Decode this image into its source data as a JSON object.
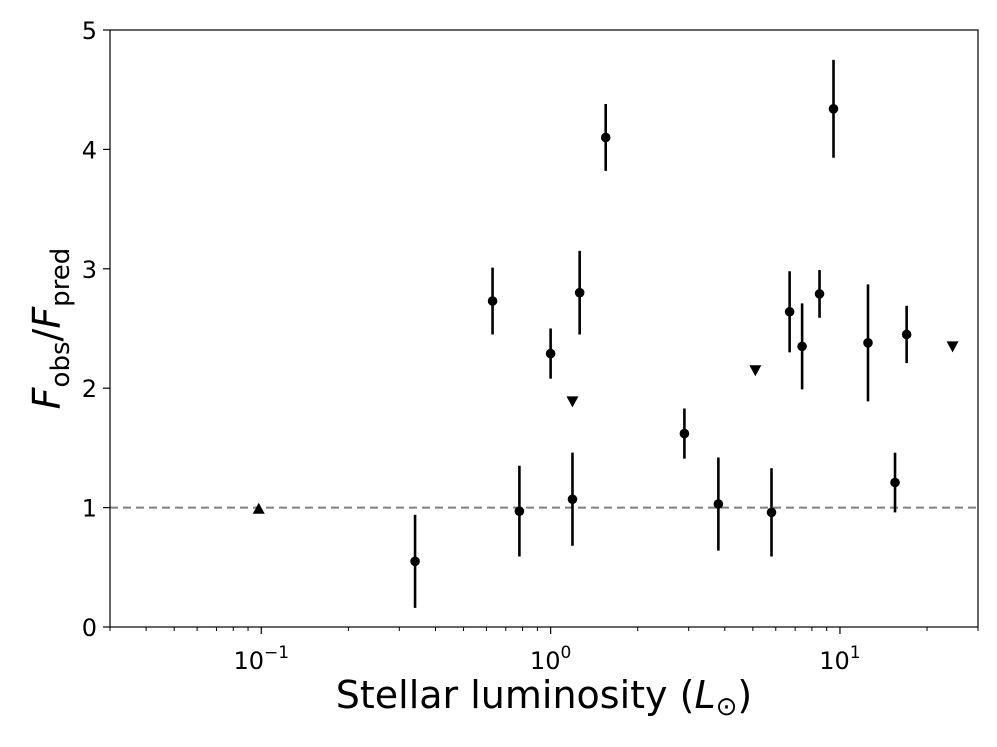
{
  "chart_data": {
    "type": "scatter",
    "xlabel": "Stellar luminosity (L⊙)",
    "ylabel": "F_obs/F_pred",
    "xscale": "log",
    "xlim": [
      0.03,
      30
    ],
    "ylim": [
      0,
      5
    ],
    "x_ticks": [
      {
        "value": 0.1,
        "base": "10",
        "exp": "−1"
      },
      {
        "value": 1,
        "base": "10",
        "exp": "0"
      },
      {
        "value": 10,
        "base": "10",
        "exp": "1"
      }
    ],
    "y_ticks": [
      0,
      1,
      2,
      3,
      4,
      5
    ],
    "reference_line": {
      "y": 1,
      "style": "dashed",
      "color": "#808080"
    },
    "detections": [
      {
        "x": 0.34,
        "y": 0.55,
        "yerr": 0.39
      },
      {
        "x": 0.63,
        "y": 2.73,
        "yerr": 0.28
      },
      {
        "x": 0.78,
        "y": 0.97,
        "yerr": 0.38
      },
      {
        "x": 1.0,
        "y": 2.29,
        "yerr": 0.21
      },
      {
        "x": 1.19,
        "y": 1.07,
        "yerr": 0.39
      },
      {
        "x": 1.26,
        "y": 2.8,
        "yerr": 0.35
      },
      {
        "x": 1.55,
        "y": 4.1,
        "yerr": 0.28
      },
      {
        "x": 2.9,
        "y": 1.62,
        "yerr": 0.21
      },
      {
        "x": 3.8,
        "y": 1.03,
        "yerr": 0.39
      },
      {
        "x": 5.8,
        "y": 0.96,
        "yerr": 0.37
      },
      {
        "x": 6.7,
        "y": 2.64,
        "yerr": 0.34
      },
      {
        "x": 7.4,
        "y": 2.35,
        "yerr": 0.36
      },
      {
        "x": 8.5,
        "y": 2.79,
        "yerr": 0.2
      },
      {
        "x": 9.5,
        "y": 4.34,
        "yerr": 0.41
      },
      {
        "x": 12.5,
        "y": 2.38,
        "yerr": 0.49
      },
      {
        "x": 15.5,
        "y": 1.21,
        "yerr": 0.25
      },
      {
        "x": 17.0,
        "y": 2.45,
        "yerr": 0.24
      }
    ],
    "lower_limits": [
      {
        "x": 0.098,
        "y": 0.99
      }
    ],
    "upper_limits": [
      {
        "x": 1.19,
        "y": 1.89
      },
      {
        "x": 5.1,
        "y": 2.15
      },
      {
        "x": 24.5,
        "y": 2.35
      }
    ],
    "marker_color": "#000000"
  }
}
